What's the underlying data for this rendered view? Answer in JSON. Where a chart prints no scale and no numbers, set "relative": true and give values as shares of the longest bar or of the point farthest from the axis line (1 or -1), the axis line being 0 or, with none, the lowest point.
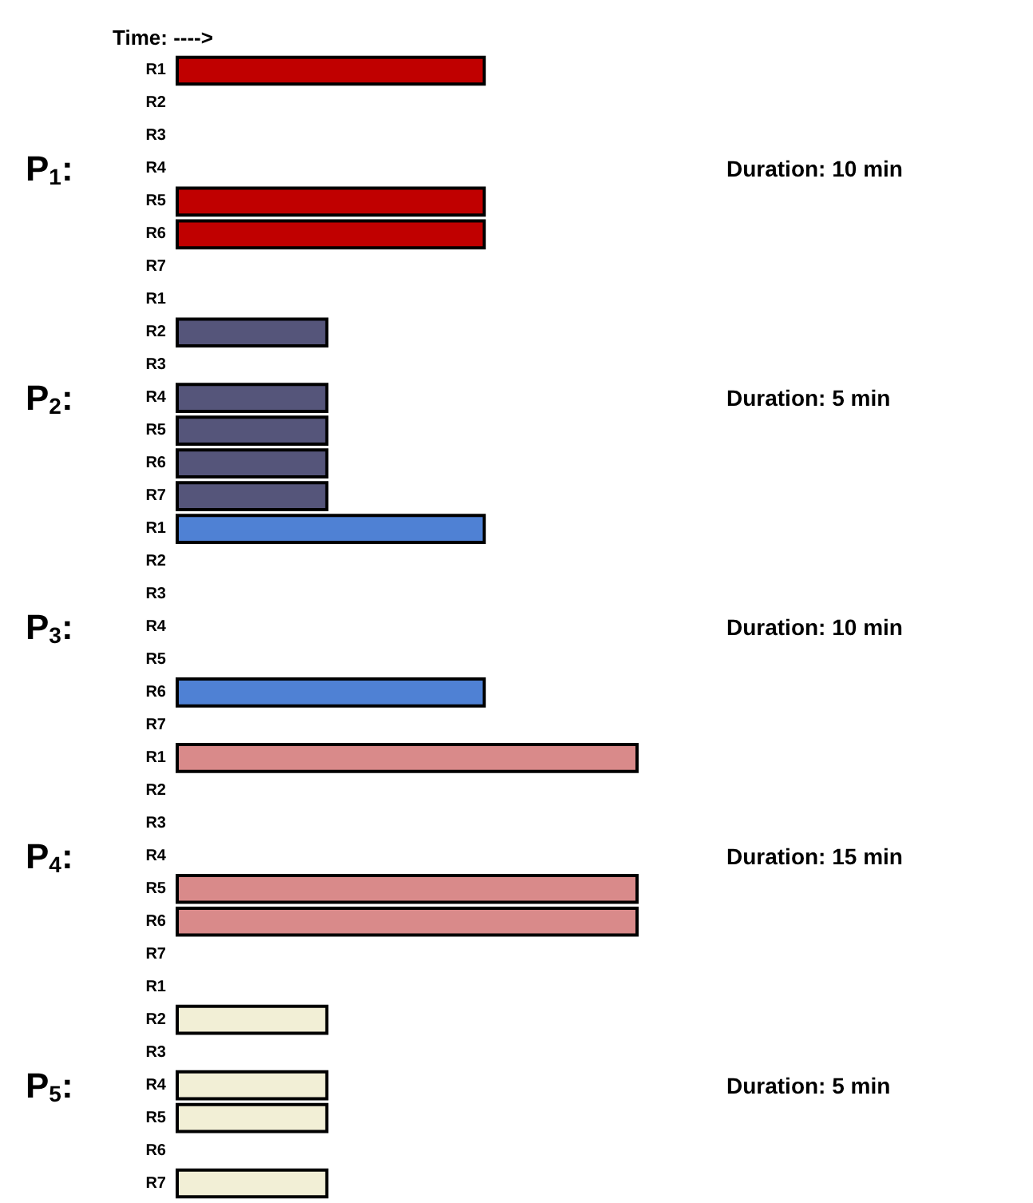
{
  "chart_data": {
    "type": "bar",
    "orientation": "horizontal",
    "relative": true,
    "xlabel": "Time: ---->",
    "tick_labels": "y",
    "grid": false,
    "categories": [
      "R1",
      "R2",
      "R3",
      "R4",
      "R5",
      "R6",
      "R7",
      "R1",
      "R2",
      "R3",
      "R4",
      "R5",
      "R6",
      "R7",
      "R1",
      "R2",
      "R3",
      "R4",
      "R5",
      "R6",
      "R7",
      "R1",
      "R2",
      "R3",
      "R4",
      "R5",
      "R6",
      "R7",
      "R1",
      "R2",
      "R3",
      "R4",
      "R5",
      "R6",
      "R7"
    ],
    "values": [
      0.67,
      null,
      null,
      null,
      0.67,
      0.67,
      null,
      null,
      0.33,
      null,
      0.33,
      0.33,
      0.33,
      0.33,
      0.67,
      null,
      null,
      null,
      null,
      0.67,
      null,
      1,
      null,
      null,
      null,
      1,
      1,
      null,
      null,
      0.33,
      null,
      0.33,
      0.33,
      null,
      0.33
    ],
    "colors": [
      "#c00000",
      null,
      null,
      null,
      "#c00000",
      "#c00000",
      null,
      null,
      "#55557a",
      null,
      "#55557a",
      "#55557a",
      "#55557a",
      "#55557a",
      "#4f81d4",
      null,
      null,
      null,
      null,
      "#4f81d4",
      null,
      "#d98a8a",
      null,
      null,
      null,
      "#d98a8a",
      "#d98a8a",
      null,
      null,
      "#f2efd6",
      null,
      "#f2efd6",
      "#f2efd6",
      null,
      "#f2efd6"
    ],
    "annotations": [
      "P$_{1}$:",
      "Duration: 10 min",
      "P$_{2}$:",
      "Duration: 5 min",
      "P$_{3}$:",
      "Duration: 10 min",
      "P$_{4}$:",
      "Duration: 15 min",
      "P$_{5}$:",
      "Duration: 5 min"
    ]
  }
}
